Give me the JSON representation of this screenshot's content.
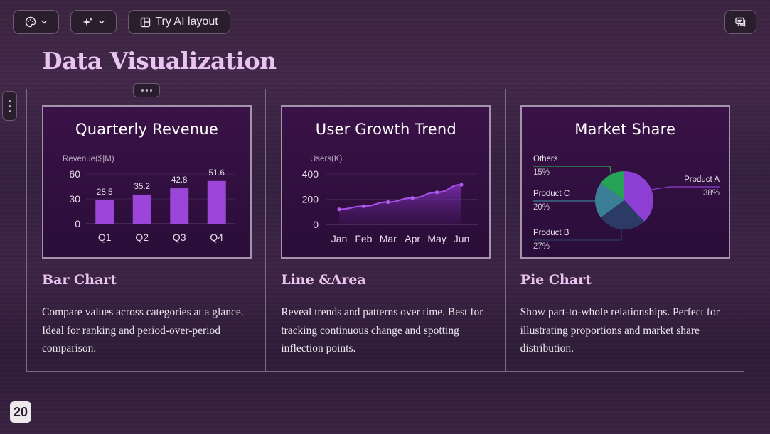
{
  "toolbar": {
    "theme_icon": "palette-icon",
    "ai_icon": "sparkle-icon",
    "ai_layout_label": "Try AI layout",
    "comment_icon": "comment-icon"
  },
  "slide": {
    "title": "Data Visualization",
    "page_number": "20",
    "accent_color": "#e9c4f0",
    "columns": [
      {
        "heading": "Bar Chart",
        "description": "Compare values across categories at a glance. Ideal for ranking and period-over-period comparison."
      },
      {
        "heading": "Line &Area",
        "description": "Reveal trends and patterns over time. Best for tracking continuous change and spotting inflection points."
      },
      {
        "heading": "Pie Chart",
        "description": "Show part-to-whole relationships. Perfect for illustrating proportions and market share distribution."
      }
    ]
  },
  "chart_data": [
    {
      "type": "bar",
      "title": "Quarterly Revenue",
      "ylabel": "Revenue($|M)",
      "categories": [
        "Q1",
        "Q2",
        "Q3",
        "Q4"
      ],
      "values": [
        28.5,
        35.2,
        42.8,
        51.6
      ],
      "data_labels": [
        "28.5",
        "35.2",
        "42.8",
        "51.6"
      ],
      "yticks": [
        "0",
        "30",
        "60"
      ],
      "ylim": [
        0,
        60
      ],
      "bar_color": "#9b45d9",
      "grid": true
    },
    {
      "type": "area",
      "title": "User Growth Trend",
      "ylabel": "Users(K)",
      "categories": [
        "Jan",
        "Feb",
        "Mar",
        "Apr",
        "May",
        "Jun"
      ],
      "values": [
        120,
        145,
        178,
        210,
        255,
        315
      ],
      "yticks": [
        "0",
        "200",
        "400"
      ],
      "ylim": [
        0,
        400
      ],
      "line_color": "#a24ee0",
      "grid": true
    },
    {
      "type": "pie",
      "title": "Market Share",
      "slices": [
        {
          "name": "Product A",
          "label": "Product A",
          "pct_label": "38%",
          "value": 38,
          "color": "#8e3fd3"
        },
        {
          "name": "Product B",
          "label": "Product B",
          "pct_label": "27%",
          "value": 27,
          "color": "#2c3a66"
        },
        {
          "name": "Product C",
          "label": "Product C",
          "pct_label": "20%",
          "value": 20,
          "color": "#3a7f96"
        },
        {
          "name": "Others",
          "label": "Others",
          "pct_label": "15%",
          "value": 15,
          "color": "#27a358"
        }
      ]
    }
  ]
}
